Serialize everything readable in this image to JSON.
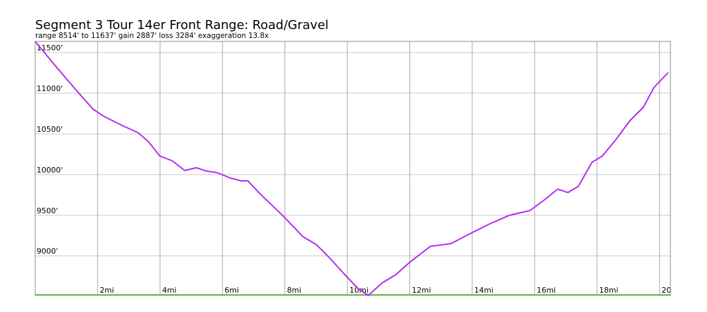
{
  "chart_data": {
    "type": "line",
    "title": "Segment 3 Tour 14er Front Range: Road/Gravel",
    "subtitle": "range 8514' to 11637'  gain 2887'  loss 3284'  exaggeration 13.8x",
    "x": [
      0,
      0.64,
      1.3,
      1.85,
      2.18,
      2.84,
      3.29,
      3.62,
      3.99,
      4.39,
      4.79,
      5.16,
      5.49,
      5.82,
      6.26,
      6.59,
      6.81,
      7.25,
      7.92,
      8.58,
      9.02,
      9.46,
      9.9,
      10.34,
      10.67,
      11.11,
      11.55,
      12.0,
      12.66,
      13.32,
      14.0,
      14.53,
      15.19,
      15.85,
      16.3,
      16.74,
      17.07,
      17.4,
      17.84,
      18.17,
      18.61,
      19.05,
      19.49,
      19.82,
      20.28
    ],
    "series": [
      {
        "color": "#b02ff0",
        "values": [
          11637,
          11340,
          11043,
          10805,
          10720,
          10593,
          10517,
          10407,
          10228,
          10169,
          10050,
          10084,
          10042,
          10025,
          9957,
          9923,
          9923,
          9745,
          9499,
          9236,
          9134,
          8964,
          8777,
          8599,
          8514,
          8667,
          8769,
          8922,
          9117,
          9151,
          9286,
          9388,
          9499,
          9558,
          9685,
          9821,
          9779,
          9855,
          10152,
          10228,
          10432,
          10661,
          10831,
          11068,
          11255
        ]
      }
    ],
    "xlim": [
      0,
      20.35
    ],
    "ylim": [
      8514,
      11637
    ],
    "xticks": [
      {
        "value": 2,
        "label": "2mi"
      },
      {
        "value": 4,
        "label": "4mi"
      },
      {
        "value": 6,
        "label": "6mi"
      },
      {
        "value": 8,
        "label": "8mi"
      },
      {
        "value": 10,
        "label": "10mi"
      },
      {
        "value": 12,
        "label": "12mi"
      },
      {
        "value": 14,
        "label": "14mi"
      },
      {
        "value": 16,
        "label": "16mi"
      },
      {
        "value": 18,
        "label": "18mi"
      },
      20
    ],
    "yticks": [
      {
        "value": 9000,
        "label": "9000'"
      },
      {
        "value": 9500,
        "label": "9500'"
      },
      {
        "value": 10000,
        "label": "10000'"
      },
      {
        "value": 10500,
        "label": "10500'"
      },
      {
        "value": 11000,
        "label": "11000'"
      },
      {
        "value": 11500,
        "label": "11500'"
      }
    ],
    "grid": true
  }
}
